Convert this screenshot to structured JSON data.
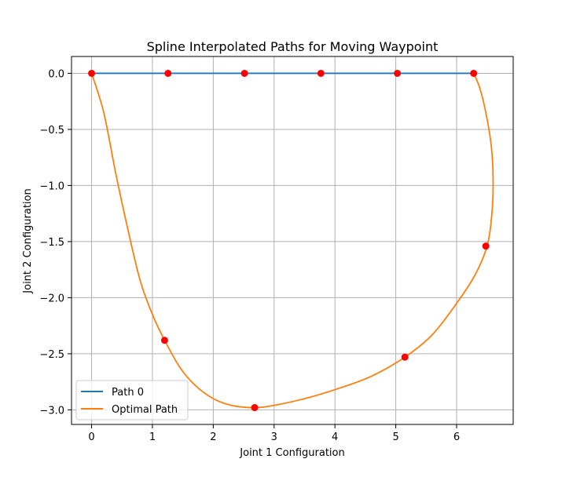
{
  "chart_data": {
    "type": "line",
    "title": "Spline Interpolated Paths for Moving Waypoint",
    "xlabel": "Joint 1 Configuration",
    "ylabel": "Joint 2 Configuration",
    "xlim": [
      -0.33,
      6.93
    ],
    "ylim": [
      -3.13,
      0.15
    ],
    "xticks": [
      0,
      1,
      2,
      3,
      4,
      5,
      6
    ],
    "yticks": [
      0.0,
      -0.5,
      -1.0,
      -1.5,
      -2.0,
      -2.5,
      -3.0
    ],
    "xtick_labels": [
      "0",
      "1",
      "2",
      "3",
      "4",
      "5",
      "6"
    ],
    "ytick_labels": [
      "0.0",
      "−0.5",
      "−1.0",
      "−1.5",
      "−2.0",
      "−2.5",
      "−3.0"
    ],
    "grid": true,
    "legend_position": "lower-left",
    "series": [
      {
        "name": "Path 0",
        "color": "#1f77b4",
        "x": [
          0,
          6.28
        ],
        "y": [
          0,
          0
        ]
      },
      {
        "name": "Optimal Path",
        "color": "#ff7f0e",
        "x": [
          0,
          0.2,
          0.4,
          0.6,
          0.8,
          1.0,
          1.2,
          1.45,
          1.7,
          2.0,
          2.3,
          2.68,
          3.0,
          3.5,
          4.0,
          4.6,
          5.15,
          5.6,
          6.0,
          6.3,
          6.5,
          6.58,
          6.6,
          6.57,
          6.48,
          6.38,
          6.28
        ],
        "y": [
          0,
          -0.35,
          -0.9,
          -1.4,
          -1.85,
          -2.15,
          -2.38,
          -2.62,
          -2.78,
          -2.9,
          -2.96,
          -2.98,
          -2.96,
          -2.9,
          -2.82,
          -2.7,
          -2.53,
          -2.33,
          -2.05,
          -1.8,
          -1.54,
          -1.25,
          -0.95,
          -0.65,
          -0.35,
          -0.13,
          0
        ]
      }
    ],
    "waypoints": {
      "color": "#ff0000",
      "x": [
        0,
        1.256,
        2.513,
        3.769,
        5.026,
        6.28,
        6.48,
        5.15,
        2.68,
        1.2
      ],
      "y": [
        0,
        0,
        0,
        0,
        0,
        0,
        -1.54,
        -2.53,
        -2.98,
        -2.38
      ]
    },
    "grid_color": "#b0b0b0"
  }
}
